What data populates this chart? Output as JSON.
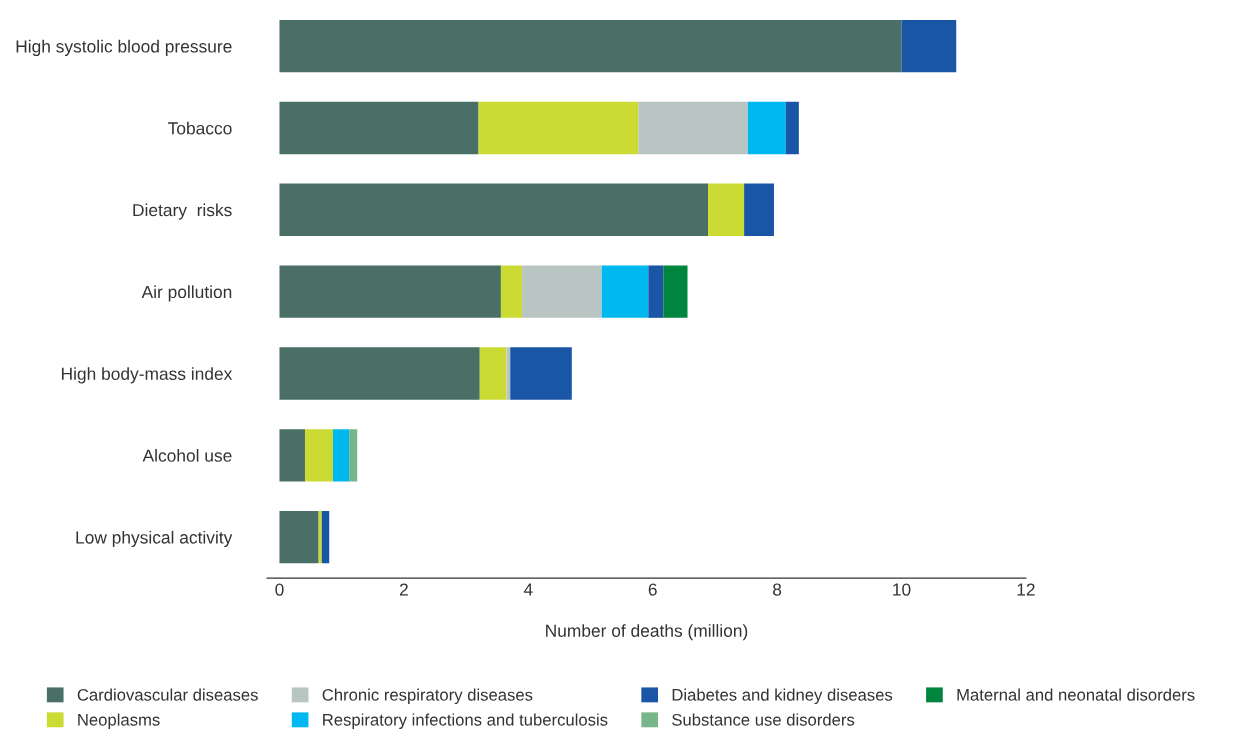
{
  "chart_data": {
    "type": "bar",
    "orientation": "horizontal",
    "stacked": true,
    "xlabel": "Number of deaths (million)",
    "categories": [
      "High systolic blood pressure",
      "Tobacco",
      "Dietary  risks",
      "Air pollution",
      "High body-mass index",
      "Alcohol use",
      "Low physical activity"
    ],
    "series": [
      {
        "name": "Cardiovascular diseases",
        "color": "#4a6f67",
        "values": [
          10.0,
          3.2,
          6.89,
          3.56,
          3.22,
          0.41,
          0.63
        ]
      },
      {
        "name": "Neoplasms",
        "color": "#cbdb34",
        "values": [
          null,
          2.57,
          0.58,
          0.34,
          0.43,
          0.45,
          0.05
        ]
      },
      {
        "name": "Chronic respiratory diseases",
        "color": "#b9c5c2",
        "values": [
          null,
          1.76,
          null,
          1.28,
          0.06,
          null,
          null
        ]
      },
      {
        "name": "Respiratory infections and tuberculosis",
        "color": "#00b8f0",
        "values": [
          null,
          0.61,
          null,
          0.75,
          null,
          0.26,
          null
        ]
      },
      {
        "name": "Diabetes and kidney diseases",
        "color": "#1a56a6",
        "values": [
          0.88,
          0.21,
          0.48,
          0.24,
          0.99,
          null,
          0.12
        ]
      },
      {
        "name": "Substance use disorders",
        "color": "#76b68a",
        "values": [
          null,
          null,
          null,
          null,
          null,
          0.13,
          null
        ]
      },
      {
        "name": "Maternal and neonatal disorders",
        "color": "#00853e",
        "values": [
          null,
          null,
          null,
          0.39,
          null,
          null,
          null
        ]
      }
    ],
    "xlim": [
      -0.2,
      12
    ],
    "xticks": [
      0,
      2,
      4,
      6,
      8,
      10,
      12
    ],
    "grid": false,
    "legend": "bottom"
  }
}
